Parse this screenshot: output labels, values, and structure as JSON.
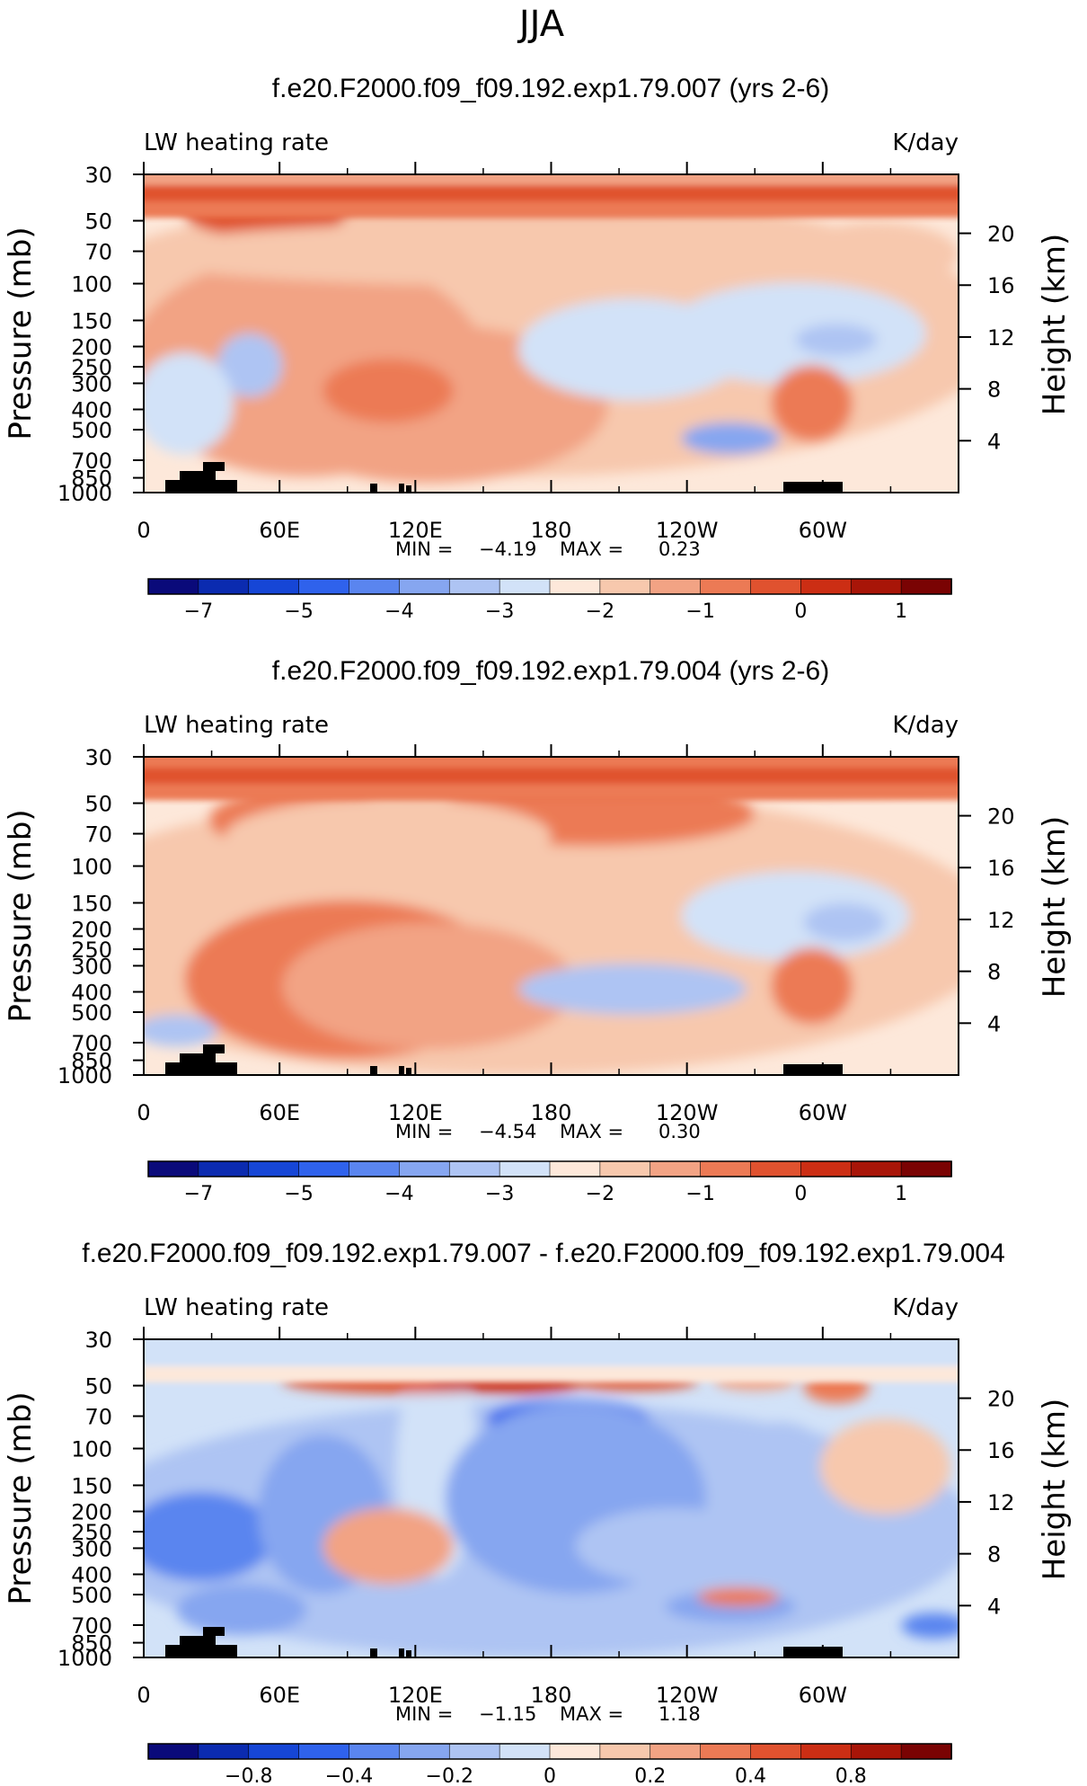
{
  "figure": {
    "season": "JJA"
  },
  "chart_data": [
    {
      "type": "heatmap",
      "title": "f.e20.F2000.f09_f09.192.exp1.79.007 (yrs 2-6)",
      "variable": "LW heating rate",
      "units": "K/day",
      "ylabel": "Pressure (mb)",
      "y2label": "Height (km)",
      "y_ticks": [
        "30",
        "50",
        "70",
        "100",
        "150",
        "200",
        "250",
        "300",
        "400",
        "500",
        "700",
        "850",
        "1000"
      ],
      "y2_ticks": [
        "20",
        "16",
        "12",
        "8",
        "4"
      ],
      "x_ticks": [
        "0",
        "60E",
        "120E",
        "180",
        "120W",
        "60W"
      ],
      "xlim": [
        0,
        360
      ],
      "ylim": [
        1000,
        30
      ],
      "min_label": "MIN =",
      "min_value": "−4.19",
      "max_label": "MAX =",
      "max_value": "0.23",
      "colorbar_labels": [
        "−7",
        "−5",
        "−4",
        "−3",
        "−2",
        "−1",
        "0",
        "1"
      ],
      "colorbar_levels": [
        -7,
        -6,
        -5,
        -4.5,
        -4,
        -3.5,
        -3,
        -2.5,
        -2,
        -1.5,
        -1,
        -0.5,
        0,
        0.5,
        1
      ],
      "colorbar_colors": [
        "#0a0a7a",
        "#0b2bb0",
        "#1646d6",
        "#2f62ec",
        "#5a85ef",
        "#86a6f0",
        "#aec4f3",
        "#d2e2f8",
        "#fde8da",
        "#f7c8ad",
        "#f2a384",
        "#ec7a55",
        "#e0522f",
        "#cc2e14",
        "#a81508",
        "#7a0303"
      ]
    },
    {
      "type": "heatmap",
      "title": "f.e20.F2000.f09_f09.192.exp1.79.004 (yrs 2-6)",
      "variable": "LW heating rate",
      "units": "K/day",
      "ylabel": "Pressure (mb)",
      "y2label": "Height (km)",
      "y_ticks": [
        "30",
        "50",
        "70",
        "100",
        "150",
        "200",
        "250",
        "300",
        "400",
        "500",
        "700",
        "850",
        "1000"
      ],
      "y2_ticks": [
        "20",
        "16",
        "12",
        "8",
        "4"
      ],
      "x_ticks": [
        "0",
        "60E",
        "120E",
        "180",
        "120W",
        "60W"
      ],
      "xlim": [
        0,
        360
      ],
      "ylim": [
        1000,
        30
      ],
      "min_label": "MIN =",
      "min_value": "−4.54",
      "max_label": "MAX =",
      "max_value": "0.30",
      "colorbar_labels": [
        "−7",
        "−5",
        "−4",
        "−3",
        "−2",
        "−1",
        "0",
        "1"
      ],
      "colorbar_levels": [
        -7,
        -6,
        -5,
        -4.5,
        -4,
        -3.5,
        -3,
        -2.5,
        -2,
        -1.5,
        -1,
        -0.5,
        0,
        0.5,
        1
      ],
      "colorbar_colors": [
        "#0a0a7a",
        "#0b2bb0",
        "#1646d6",
        "#2f62ec",
        "#5a85ef",
        "#86a6f0",
        "#aec4f3",
        "#d2e2f8",
        "#fde8da",
        "#f7c8ad",
        "#f2a384",
        "#ec7a55",
        "#e0522f",
        "#cc2e14",
        "#a81508",
        "#7a0303"
      ]
    },
    {
      "type": "heatmap",
      "title": "f.e20.F2000.f09_f09.192.exp1.79.007 - f.e20.F2000.f09_f09.192.exp1.79.004",
      "variable": "LW heating rate",
      "units": "K/day",
      "ylabel": "Pressure (mb)",
      "y2label": "Height (km)",
      "y_ticks": [
        "30",
        "50",
        "70",
        "100",
        "150",
        "200",
        "250",
        "300",
        "400",
        "500",
        "700",
        "850",
        "1000"
      ],
      "y2_ticks": [
        "20",
        "16",
        "12",
        "8",
        "4"
      ],
      "x_ticks": [
        "0",
        "60E",
        "120E",
        "180",
        "120W",
        "60W"
      ],
      "xlim": [
        0,
        360
      ],
      "ylim": [
        1000,
        30
      ],
      "min_label": "MIN =",
      "min_value": "−1.15",
      "max_label": "MAX =",
      "max_value": "1.18",
      "colorbar_labels": [
        "−0.8",
        "−0.4",
        "−0.2",
        "0",
        "0.2",
        "0.4",
        "0.8"
      ],
      "colorbar_levels": [
        -1,
        -0.8,
        -0.6,
        -0.4,
        -0.3,
        -0.2,
        -0.1,
        0,
        0.1,
        0.2,
        0.3,
        0.4,
        0.6,
        0.8,
        1
      ],
      "colorbar_colors": [
        "#0a0a7a",
        "#0b2bb0",
        "#1646d6",
        "#2f62ec",
        "#5a85ef",
        "#86a6f0",
        "#aec4f3",
        "#d2e2f8",
        "#fde8da",
        "#f7c8ad",
        "#f2a384",
        "#ec7a55",
        "#e0522f",
        "#cc2e14",
        "#a81508",
        "#7a0303"
      ]
    }
  ]
}
